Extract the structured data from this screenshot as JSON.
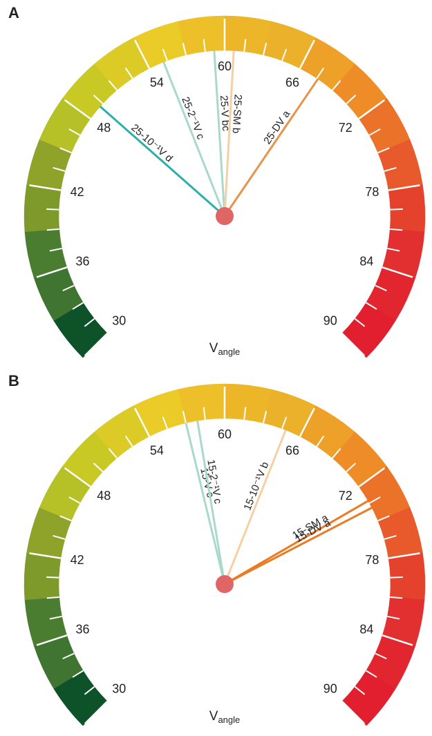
{
  "chart_data": [
    {
      "type": "gauge",
      "panel": "A",
      "xlabel": "V",
      "xlabel_sub": "angle",
      "lim": [
        30,
        90
      ],
      "ticks": [
        30,
        36,
        42,
        48,
        54,
        60,
        66,
        72,
        78,
        84,
        90
      ],
      "minor_step": 1.5,
      "segment_colors": [
        "#0d5229",
        "#3f7530",
        "#4a7d2f",
        "#7e9a2b",
        "#8fa22a",
        "#b6c027",
        "#c8c924",
        "#dccb26",
        "#ebcb28",
        "#edc029",
        "#ecb628",
        "#ecb12a",
        "#eea129",
        "#ee8d28",
        "#ea7229",
        "#e8592c",
        "#e5422d",
        "#e22f2f",
        "#e2262f",
        "#e11f2e"
      ],
      "needles": [
        {
          "name": "25-10⁻¹V d",
          "color": "#2ab0aa",
          "value": 49.2
        },
        {
          "name": "25-2⁻¹V c",
          "color": "#a9d9cc",
          "value": 55.2
        },
        {
          "name": "25-V bc",
          "color": "#a9d9cc",
          "value": 59.2
        },
        {
          "name": "25-SM b",
          "color": "#f6cfa4",
          "value": 60.7
        },
        {
          "name": "25-DV a",
          "color": "#e9924c",
          "value": 67.6
        }
      ]
    },
    {
      "type": "gauge",
      "panel": "B",
      "xlabel": "V",
      "xlabel_sub": "angle",
      "lim": [
        30,
        90
      ],
      "ticks": [
        30,
        36,
        42,
        48,
        54,
        60,
        66,
        72,
        78,
        84,
        90
      ],
      "minor_step": 1.5,
      "segment_colors": [
        "#0d5229",
        "#3f7530",
        "#4a7d2f",
        "#7e9a2b",
        "#8fa22a",
        "#b6c027",
        "#c8c924",
        "#dccb26",
        "#ebcb28",
        "#edc029",
        "#ecb628",
        "#ecb12a",
        "#eea129",
        "#ee8d28",
        "#ea7229",
        "#e8592c",
        "#e5422d",
        "#e22f2f",
        "#e2262f",
        "#e11f2e"
      ],
      "needles": [
        {
          "name": "15-V c",
          "color": "#a9d9cc",
          "value": 57.0
        },
        {
          "name": "15-2⁻¹V c",
          "color": "#a9d9cc",
          "value": 57.9
        },
        {
          "name": "15-10⁻¹V b",
          "color": "#f6cfa4",
          "value": 64.8
        },
        {
          "name": "15-SM a",
          "color": "#ec7a22",
          "value": 73.3
        },
        {
          "name": "15-DV a",
          "color": "#ec7a22",
          "value": 73.9
        }
      ]
    }
  ]
}
